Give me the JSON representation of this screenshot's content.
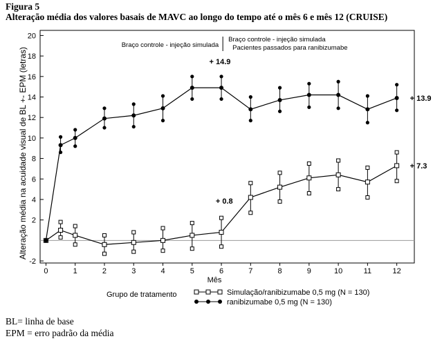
{
  "figure": {
    "label": "Figura 5",
    "title": "Alteração média dos valores basais de MAVC ao longo do tempo até o mês 6 e mês 12 (CRUISE)"
  },
  "notes": [
    "BL= linha de base",
    "EPM = erro padrão da média"
  ],
  "chart_data": {
    "type": "line",
    "title": "",
    "xlabel": "Mês",
    "ylabel": "Alteração média na acuidade visual de BL +- EPM (letras)",
    "xlim": [
      -0.2,
      12.6
    ],
    "ylim": [
      -2.2,
      20.5
    ],
    "x_ticks": [
      0,
      1,
      2,
      3,
      4,
      5,
      6,
      7,
      8,
      9,
      10,
      11,
      12
    ],
    "x_tick_labels": [
      "0",
      "1",
      "2",
      "3",
      "4",
      "5",
      "6",
      "7",
      "8",
      "9",
      "10",
      "11",
      "12"
    ],
    "y_ticks": [
      20,
      18,
      16,
      14,
      12,
      10,
      8,
      6,
      4,
      2,
      -2
    ],
    "y_tick_labels": [
      "20",
      "18",
      "16",
      "14",
      "12",
      "10",
      "8",
      "6",
      "4",
      "2",
      "-2"
    ],
    "baseline": 0,
    "grid": false,
    "series": [
      {
        "name": "Simulação/ranibizumabe 0,5 mg (N = 130)",
        "marker": "square",
        "x": [
          0,
          0.5,
          1,
          2,
          3,
          4,
          5,
          6,
          7,
          8,
          9,
          10,
          11,
          12
        ],
        "y": [
          0,
          1.0,
          0.5,
          -0.4,
          -0.2,
          0.0,
          0.5,
          0.8,
          4.2,
          5.2,
          6.1,
          6.4,
          5.7,
          7.3
        ],
        "lo": [
          0,
          0.3,
          -0.4,
          -1.3,
          -1.1,
          -1.0,
          -0.8,
          -0.6,
          2.7,
          3.8,
          4.6,
          5.0,
          4.2,
          5.8
        ],
        "hi": [
          0,
          1.8,
          1.4,
          0.5,
          0.8,
          1.2,
          1.7,
          2.2,
          5.6,
          6.6,
          7.5,
          7.8,
          7.1,
          8.6
        ]
      },
      {
        "name": "ranibizumabe 0,5 mg (N = 130)",
        "marker": "circle",
        "x": [
          0,
          0.5,
          1,
          2,
          3,
          4,
          5,
          6,
          7,
          8,
          9,
          10,
          11,
          12
        ],
        "y": [
          0,
          9.3,
          10.0,
          11.9,
          12.2,
          12.9,
          14.9,
          14.9,
          12.8,
          13.7,
          14.2,
          14.2,
          12.8,
          13.9
        ],
        "lo": [
          0,
          8.6,
          9.2,
          11.0,
          11.1,
          11.7,
          13.8,
          13.8,
          11.7,
          12.6,
          13.0,
          12.9,
          11.5,
          12.7
        ],
        "hi": [
          0,
          10.1,
          10.8,
          12.9,
          13.3,
          14.1,
          16.0,
          16.0,
          14.0,
          14.9,
          15.3,
          15.5,
          14.1,
          15.2
        ]
      }
    ],
    "annotations": {
      "period1": "Braço controle - injeção simulada",
      "period2_line1": "Braço controle - injeção simulada",
      "period2_line2": "Pacientes passados para ranibizumabe",
      "peak_ranibizumab": "+ 14.9",
      "end_ranibizumab": "+ 13.9",
      "month6_sham": "+ 0.8",
      "end_sham": "+ 7.3"
    },
    "legend": {
      "title": "Grupo de tratamento",
      "position": "bottom"
    }
  }
}
